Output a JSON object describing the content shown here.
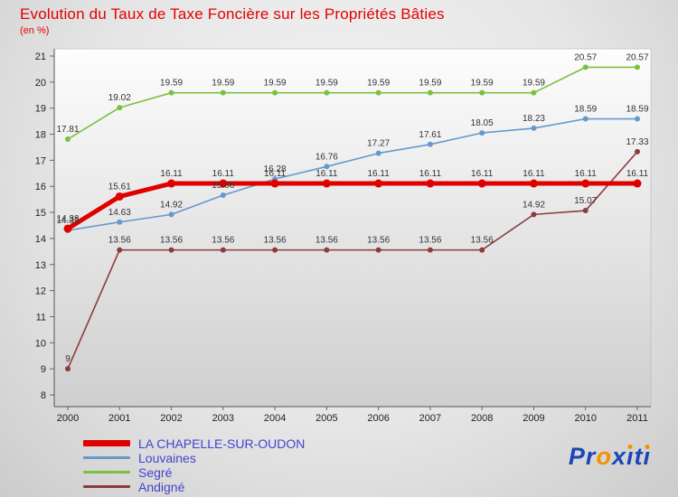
{
  "header": {
    "title": "Evolution du Taux de Taxe Foncière sur les Propriétés Bâties",
    "subtitle": "(en %)"
  },
  "chart_data": {
    "type": "line",
    "title": "Evolution du Taux de Taxe Foncière sur les Propriétés Bâties",
    "subtitle": "(en %)",
    "x": [
      2000,
      2001,
      2002,
      2003,
      2004,
      2005,
      2006,
      2007,
      2008,
      2009,
      2010,
      2011
    ],
    "ylim": [
      8,
      21
    ],
    "yticks": [
      8,
      9,
      10,
      11,
      12,
      13,
      14,
      15,
      16,
      17,
      18,
      19,
      20,
      21
    ],
    "grid": false,
    "legend_position": "bottom-left",
    "series": [
      {
        "name": "LA CHAPELLE-SUR-OUDON",
        "color": "#e10000",
        "line_style": "thick",
        "values": [
          14.38,
          15.61,
          16.11,
          16.11,
          16.11,
          16.11,
          16.11,
          16.11,
          16.11,
          16.11,
          16.11,
          16.11
        ]
      },
      {
        "name": "Louvaines",
        "color": "#6699cc",
        "line_style": "thin",
        "values": [
          14.31,
          14.63,
          14.92,
          15.66,
          16.28,
          16.76,
          17.27,
          17.61,
          18.05,
          18.23,
          18.59,
          18.59
        ]
      },
      {
        "name": "Segré",
        "color": "#7ac142",
        "line_style": "thin",
        "values": [
          17.81,
          19.02,
          19.59,
          19.59,
          19.59,
          19.59,
          19.59,
          19.59,
          19.59,
          19.59,
          20.57,
          20.57
        ]
      },
      {
        "name": "Andigné",
        "color": "#8e3b3b",
        "line_style": "thin",
        "values": [
          9,
          13.56,
          13.56,
          13.56,
          13.56,
          13.56,
          13.56,
          13.56,
          13.56,
          14.92,
          15.07,
          17.33
        ]
      }
    ]
  },
  "legend_text_color": "#4343cf",
  "label_text_color": "#333333",
  "axis_text_color": "#222222",
  "logo": {
    "text": "Proxiti",
    "blue": "#1a46b8",
    "orange": "#f39200"
  }
}
